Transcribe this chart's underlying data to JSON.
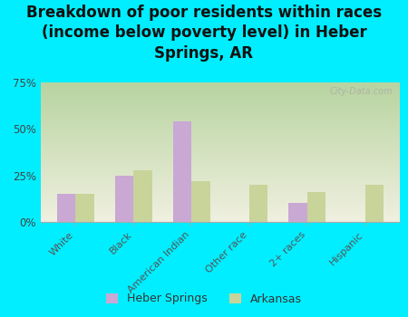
{
  "title": "Breakdown of poor residents within races\n(income below poverty level) in Heber\nSprings, AR",
  "categories": [
    "White",
    "Black",
    "American Indian",
    "Other race",
    "2+ races",
    "Hispanic"
  ],
  "heber_springs": [
    15,
    25,
    54,
    0,
    10,
    0
  ],
  "arkansas": [
    15,
    28,
    22,
    20,
    16,
    20
  ],
  "heber_color": "#c9a8d4",
  "arkansas_color": "#c8d49a",
  "background_outer": "#00eeff",
  "background_chart_top": "#b8d4a0",
  "background_chart_bottom": "#f0f0e0",
  "ylim": [
    0,
    75
  ],
  "yticks": [
    0,
    25,
    50,
    75
  ],
  "ytick_labels": [
    "0%",
    "25%",
    "50%",
    "75%"
  ],
  "watermark": "City-Data.com",
  "bar_width": 0.32,
  "title_fontsize": 12,
  "legend_label_heber": "Heber Springs",
  "legend_label_arkansas": "Arkansas"
}
